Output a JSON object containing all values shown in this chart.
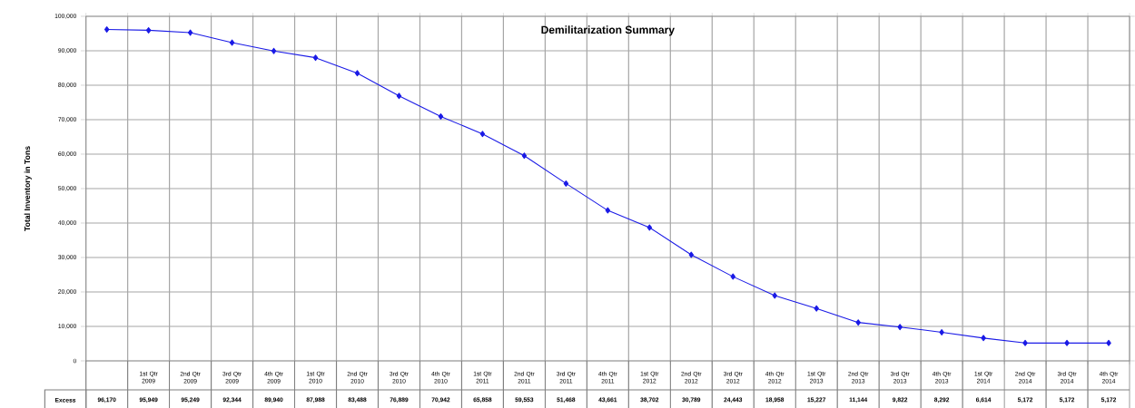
{
  "chart_data": {
    "type": "line",
    "title": "Demilitarization Summary",
    "ylabel": "Total Inventory in Tons",
    "categories": [
      null,
      "1st Qtr 2009",
      "2nd Qtr 2009",
      "3rd Qtr 2009",
      "4th Qtr 2009",
      "1st Qtr 2010",
      "2nd Qtr 2010",
      "3rd Qtr 2010",
      "4th Qtr 2010",
      "1st Qtr 2011",
      "2nd Qtr 2011",
      "3rd Qtr 2011",
      "4th Qtr 2011",
      "1st Qtr 2012",
      "2nd Qtr 2012",
      "3rd Qtr 2012",
      "4th Qtr 2012",
      "1st Qtr 2013",
      "2nd Qtr 2013",
      "3rd Qtr 2013",
      "4th Qtr 2013",
      "1st Qtr 2014",
      "2nd Qtr 2014",
      "3rd Qtr 2014",
      "4th Qtr 2014"
    ],
    "series": [
      {
        "name": "Excess",
        "color": "#1a1ae6",
        "values": [
          96170,
          95949,
          95249,
          92344,
          89940,
          87988,
          83488,
          76889,
          70942,
          65858,
          59553,
          51468,
          43661,
          38702,
          30789,
          24443,
          18958,
          15227,
          11144,
          9822,
          8292,
          6614,
          5172,
          5172,
          5172
        ],
        "value_labels": [
          "96,170",
          "95,949",
          "95,249",
          "92,344",
          "89,940",
          "87,988",
          "83,488",
          "76,889",
          "70,942",
          "65,858",
          "59,553",
          "51,468",
          "43,661",
          "38,702",
          "30,789",
          "24,443",
          "18,958",
          "15,227",
          "11,144",
          "9,822",
          "8,292",
          "6,614",
          "5,172",
          "5,172",
          "5,172"
        ]
      }
    ],
    "ylim": [
      0,
      100000
    ],
    "yticks": [
      0,
      {
        "value": 10000,
        "label": "10,000"
      },
      {
        "value": 20000,
        "label": "20,000"
      },
      {
        "value": 30000,
        "label": "30,000"
      },
      {
        "value": 40000,
        "label": "40,000"
      },
      {
        "value": 50000,
        "label": "50,000"
      },
      {
        "value": 60000,
        "label": "60,000"
      },
      {
        "value": 70000,
        "label": "70,000"
      },
      {
        "value": 80000,
        "label": "80,000"
      },
      {
        "value": 90000,
        "label": "90,000"
      },
      {
        "value": 100000,
        "label": "100,000"
      }
    ],
    "grid": true,
    "marker": "diamond",
    "line_style": "solid"
  }
}
